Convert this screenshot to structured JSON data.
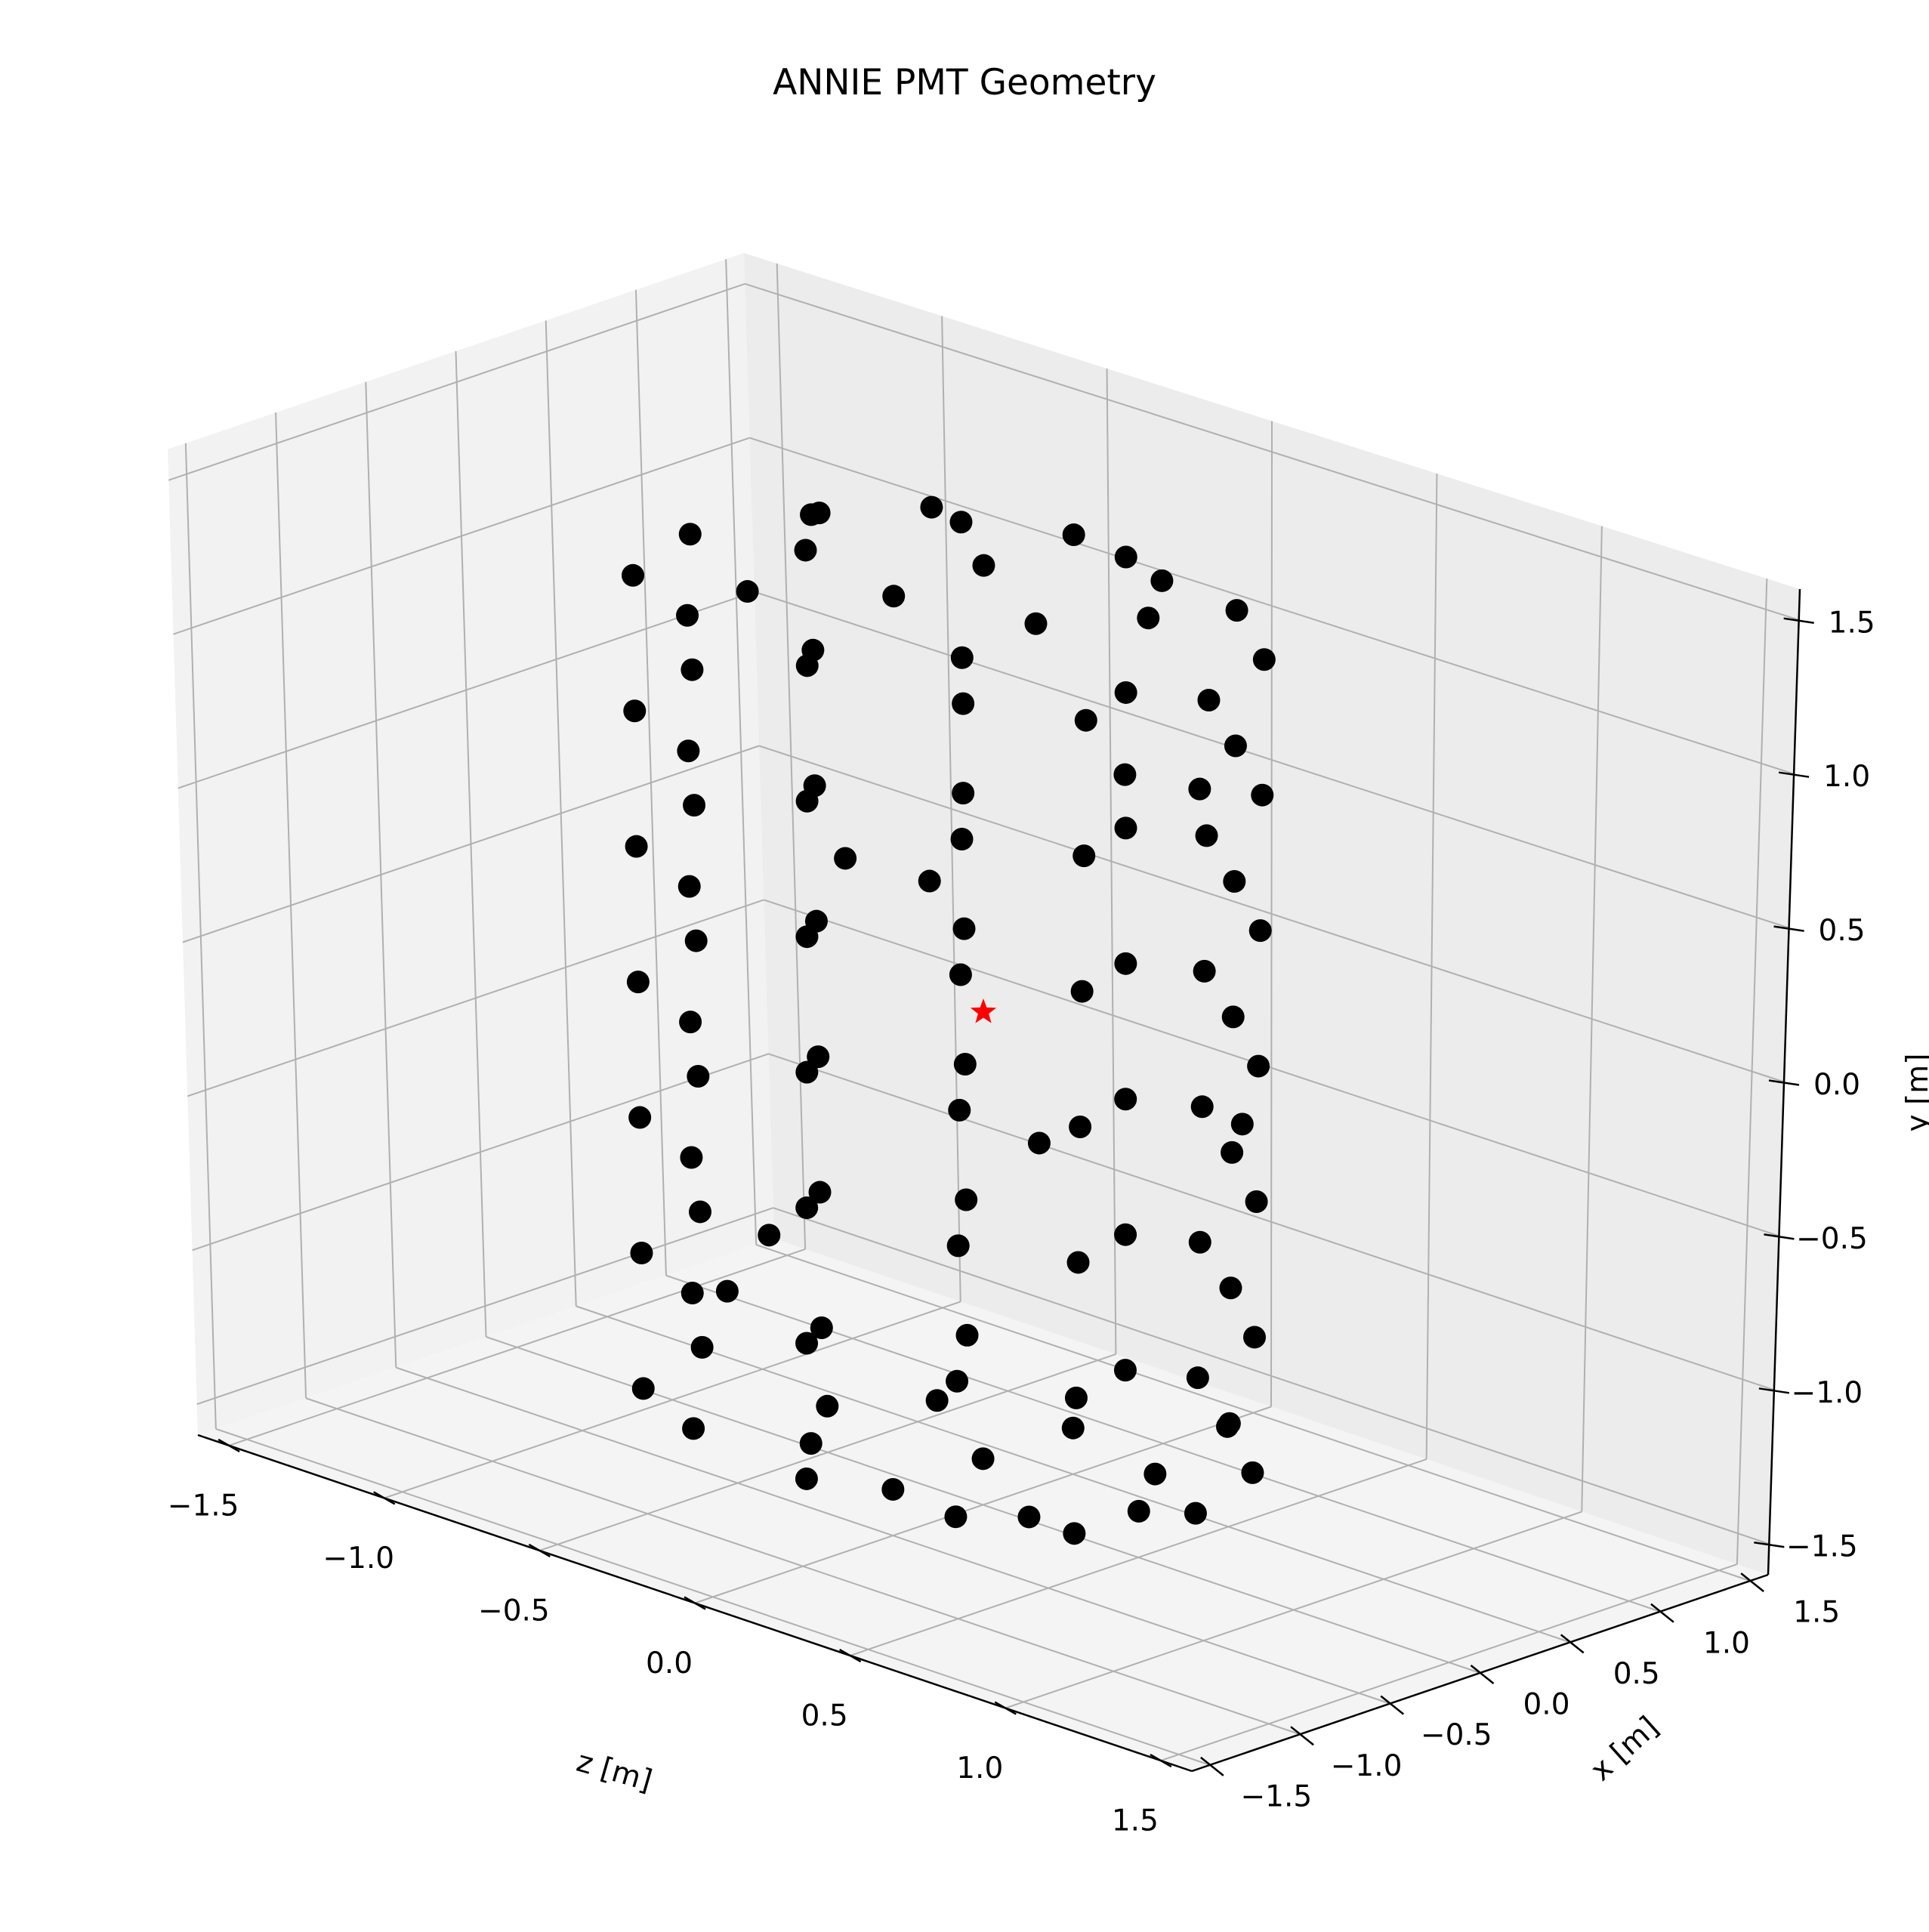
{
  "chart_data": {
    "type": "scatter",
    "projection": "3d",
    "title": "ANNIE PMT Geometry",
    "xlabel": "z [m]",
    "ylabel": "x [m]",
    "zlabel": "y [m]",
    "xlim": [
      -1.6,
      1.6
    ],
    "ylim": [
      -1.6,
      1.6
    ],
    "zlim": [
      -1.6,
      1.6
    ],
    "xticks": [
      -1.5,
      -1.0,
      -0.5,
      0.0,
      0.5,
      1.0,
      1.5
    ],
    "yticks": [
      -1.5,
      -1.0,
      -0.5,
      0.0,
      0.5,
      1.0,
      1.5
    ],
    "zticks": [
      -1.5,
      -1.0,
      -0.5,
      0.0,
      0.5,
      1.0,
      1.5
    ],
    "tick_labels": [
      "−1.5",
      "−1.0",
      "−0.5",
      "0.0",
      "0.5",
      "1.0",
      "1.5"
    ],
    "grid": true,
    "legend": "none",
    "colors": {
      "pmt": "#000000",
      "vertex": "#ff0000",
      "pane_side": "#f2f2f2",
      "pane_back": "#ececec",
      "pane_floor": "#f4f4f4",
      "grid": "#b0b0b0"
    },
    "series": [
      {
        "marker": "circle",
        "points": [
          [
            -0.69,
            -0.69,
            1.32
          ],
          [
            -0.42,
            -0.88,
            1.32
          ],
          [
            0.42,
            -0.88,
            1.32
          ],
          [
            0.69,
            -0.69,
            1.32
          ],
          [
            0.79,
            -0.19,
            1.32
          ],
          [
            0.69,
            0.3,
            1.32
          ],
          [
            0.42,
            0.64,
            1.32
          ],
          [
            0.0,
            0.79,
            1.32
          ],
          [
            -0.42,
            0.64,
            1.32
          ],
          [
            -0.69,
            0.3,
            1.32
          ],
          [
            -0.79,
            -0.19,
            1.32
          ],
          [
            0.0,
            -0.98,
            1.32
          ],
          [
            -0.69,
            -0.69,
            0.88
          ],
          [
            -0.42,
            -0.88,
            0.88
          ],
          [
            0.42,
            -0.88,
            0.88
          ],
          [
            0.69,
            -0.69,
            0.88
          ],
          [
            0.79,
            -0.19,
            0.88
          ],
          [
            0.69,
            0.3,
            0.88
          ],
          [
            0.42,
            0.64,
            0.88
          ],
          [
            0.0,
            0.79,
            0.88
          ],
          [
            -0.42,
            0.64,
            0.88
          ],
          [
            -0.69,
            0.3,
            0.88
          ],
          [
            -0.79,
            -0.19,
            0.88
          ],
          [
            0.0,
            -0.98,
            0.88
          ],
          [
            -0.69,
            -0.69,
            0.44
          ],
          [
            -0.42,
            -0.88,
            0.44
          ],
          [
            0.42,
            -0.88,
            0.44
          ],
          [
            0.69,
            -0.69,
            0.44
          ],
          [
            0.79,
            -0.19,
            0.44
          ],
          [
            0.69,
            0.3,
            0.44
          ],
          [
            0.42,
            0.64,
            0.44
          ],
          [
            0.0,
            0.79,
            0.44
          ],
          [
            -0.42,
            0.64,
            0.44
          ],
          [
            -0.69,
            0.3,
            0.44
          ],
          [
            -0.79,
            -0.19,
            0.44
          ],
          [
            0.0,
            -0.98,
            0.44
          ],
          [
            -0.69,
            -0.69,
            0.0
          ],
          [
            -0.42,
            -0.88,
            0.0
          ],
          [
            0.42,
            -0.88,
            0.0
          ],
          [
            0.69,
            -0.69,
            0.0
          ],
          [
            0.79,
            -0.19,
            0.0
          ],
          [
            0.69,
            0.3,
            0.0
          ],
          [
            0.42,
            0.64,
            0.0
          ],
          [
            0.0,
            0.79,
            0.0
          ],
          [
            -0.42,
            0.64,
            0.0
          ],
          [
            -0.69,
            0.3,
            0.0
          ],
          [
            -0.79,
            -0.19,
            0.0
          ],
          [
            0.0,
            -0.98,
            0.0
          ],
          [
            -0.69,
            -0.69,
            -0.44
          ],
          [
            -0.42,
            -0.88,
            -0.44
          ],
          [
            0.42,
            -0.88,
            -0.44
          ],
          [
            0.69,
            -0.69,
            -0.44
          ],
          [
            0.79,
            -0.19,
            -0.44
          ],
          [
            0.69,
            0.3,
            -0.44
          ],
          [
            0.42,
            0.64,
            -0.44
          ],
          [
            0.0,
            0.79,
            -0.44
          ],
          [
            -0.42,
            0.64,
            -0.44
          ],
          [
            -0.69,
            0.3,
            -0.44
          ],
          [
            -0.79,
            -0.19,
            -0.44
          ],
          [
            0.0,
            -0.98,
            -0.44
          ],
          [
            -0.69,
            -0.69,
            -0.88
          ],
          [
            -0.42,
            -0.88,
            -0.88
          ],
          [
            0.42,
            -0.88,
            -0.88
          ],
          [
            0.69,
            -0.69,
            -0.88
          ],
          [
            0.79,
            -0.19,
            -0.88
          ],
          [
            0.69,
            0.3,
            -0.88
          ],
          [
            0.42,
            0.64,
            -0.88
          ],
          [
            0.0,
            0.79,
            -0.88
          ],
          [
            -0.42,
            0.64,
            -0.88
          ],
          [
            -0.69,
            0.3,
            -0.88
          ],
          [
            -0.79,
            -0.19,
            -0.88
          ],
          [
            0.0,
            -0.98,
            -0.88
          ],
          [
            -0.69,
            -0.69,
            -1.32
          ],
          [
            -0.42,
            -0.88,
            -1.32
          ],
          [
            0.42,
            -0.88,
            -1.32
          ],
          [
            0.69,
            -0.69,
            -1.32
          ],
          [
            0.79,
            -0.19,
            -1.32
          ],
          [
            0.69,
            0.3,
            -1.32
          ],
          [
            0.42,
            0.64,
            -1.32
          ],
          [
            0.0,
            0.79,
            -1.32
          ],
          [
            -0.42,
            0.64,
            -1.32
          ],
          [
            -0.69,
            0.3,
            -1.32
          ],
          [
            -0.79,
            -0.19,
            -1.32
          ],
          [
            0.0,
            -0.98,
            -1.32
          ],
          [
            -0.35,
            0.35,
            1.45
          ],
          [
            0.35,
            0.35,
            1.45
          ],
          [
            0.0,
            0.0,
            1.45
          ],
          [
            -0.35,
            -0.35,
            1.45
          ],
          [
            0.35,
            -0.35,
            1.45
          ],
          [
            0.0,
            0.5,
            1.45
          ],
          [
            0.0,
            -0.5,
            1.45
          ],
          [
            -0.5,
            0.0,
            1.45
          ],
          [
            0.5,
            0.0,
            1.45
          ],
          [
            -0.35,
            0.35,
            -1.45
          ],
          [
            0.35,
            0.35,
            -1.45
          ],
          [
            0.0,
            0.0,
            -1.45
          ],
          [
            -0.35,
            -0.35,
            -1.45
          ],
          [
            0.35,
            -0.35,
            -1.45
          ],
          [
            0.0,
            0.5,
            -1.45
          ],
          [
            0.0,
            -0.5,
            -1.45
          ],
          [
            -0.5,
            0.0,
            -1.45
          ],
          [
            0.5,
            0.0,
            -1.45
          ],
          [
            0.62,
            -0.34,
            1.05
          ],
          [
            -0.62,
            -0.34,
            -1.05
          ],
          [
            0.62,
            0.34,
            -0.22
          ],
          [
            -0.62,
            0.34,
            0.22
          ],
          [
            0.25,
            -0.75,
            0.66
          ],
          [
            -0.25,
            -0.75,
            -0.66
          ],
          [
            0.25,
            0.75,
            0.66
          ],
          [
            -0.25,
            0.75,
            -0.66
          ],
          [
            0.75,
            0.05,
            -1.1
          ],
          [
            -0.75,
            0.05,
            1.1
          ]
        ]
      },
      {
        "marker": "star",
        "points": [
          [
            0.0,
            0.0,
            0.0
          ]
        ]
      }
    ]
  }
}
